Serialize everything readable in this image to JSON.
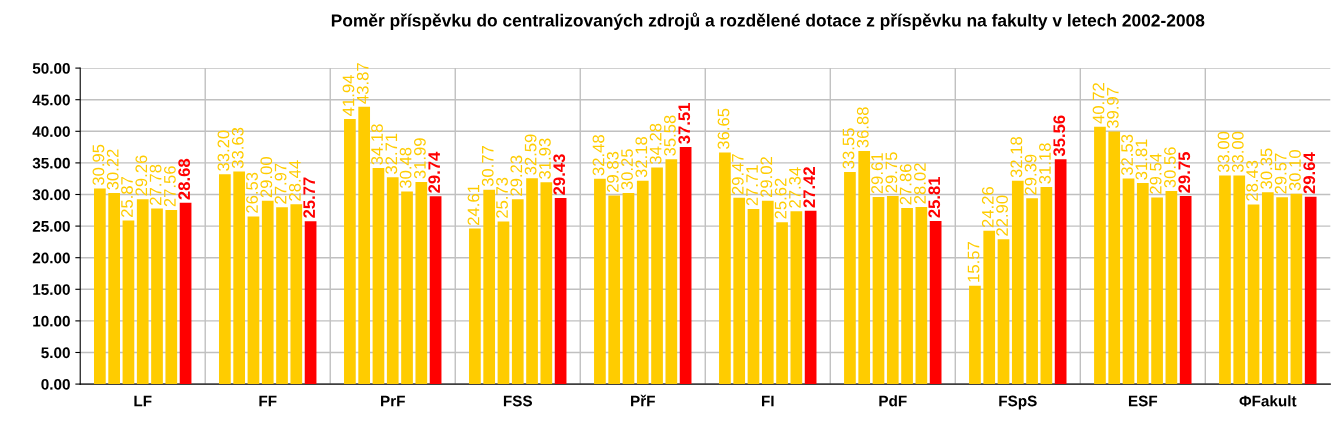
{
  "chart_data": {
    "type": "bar",
    "title": "Poměr příspěvku do centralizovaných zdrojů a rozdělené dotace z příspěvku na fakulty v letech 2002-2008",
    "categories": [
      "LF",
      "FF",
      "PrF",
      "FSS",
      "PřF",
      "FI",
      "PdF",
      "FSpS",
      "ESF",
      "ΦFakult"
    ],
    "series": [
      {
        "color": "#ffcc00",
        "values": [
          30.95,
          33.2,
          41.94,
          24.61,
          32.48,
          36.65,
          33.55,
          15.57,
          40.72,
          33.0
        ],
        "value_labels": [
          "30.95",
          "33.20",
          "41.94",
          "24.61",
          "32.48",
          "36.65",
          "33.55",
          "15.57",
          "40.72",
          "33.00"
        ]
      },
      {
        "color": "#ffcc00",
        "values": [
          30.22,
          33.63,
          43.87,
          30.77,
          29.83,
          29.47,
          36.88,
          24.26,
          39.97,
          33.0
        ],
        "value_labels": [
          "30.22",
          "33.63",
          "43.87",
          "30.77",
          "29.83",
          "29.47",
          "36.88",
          "24.26",
          "39.97",
          "33.00"
        ]
      },
      {
        "color": "#ffcc00",
        "values": [
          25.87,
          26.53,
          34.18,
          25.73,
          30.25,
          27.71,
          29.61,
          22.9,
          32.53,
          28.43
        ],
        "value_labels": [
          "25.87",
          "26.53",
          "34.18",
          "25.73",
          "30.25",
          "27.71",
          "29.61",
          "22.90",
          "32.53",
          "28.43"
        ]
      },
      {
        "color": "#ffcc00",
        "values": [
          29.26,
          29.0,
          32.71,
          29.23,
          32.18,
          29.02,
          29.75,
          32.18,
          31.81,
          30.35
        ],
        "value_labels": [
          "29.26",
          "29.00",
          "32.71",
          "29.23",
          "32.18",
          "29.02",
          "29.75",
          "32.18",
          "31.81",
          "30.35"
        ]
      },
      {
        "color": "#ffcc00",
        "values": [
          27.78,
          27.97,
          30.48,
          32.59,
          34.28,
          25.62,
          27.86,
          29.39,
          29.54,
          29.57
        ],
        "value_labels": [
          "27.78",
          "27.97",
          "30.48",
          "32.59",
          "34.28",
          "25.62",
          "27.86",
          "29.39",
          "29.54",
          "29.57"
        ]
      },
      {
        "color": "#ffcc00",
        "values": [
          27.56,
          28.44,
          31.99,
          31.93,
          35.58,
          27.34,
          28.02,
          31.18,
          30.56,
          30.1
        ],
        "value_labels": [
          "27.56",
          "28.44",
          "31.99",
          "31.93",
          "35.58",
          "27.34",
          "28.02",
          "31.18",
          "30.56",
          "30.10"
        ]
      },
      {
        "color": "#ff0000",
        "values": [
          28.68,
          25.77,
          29.74,
          29.43,
          37.51,
          27.42,
          25.81,
          35.56,
          29.75,
          29.64
        ],
        "value_labels": [
          "28.68",
          "25.77",
          "29.74",
          "29.43",
          "37.51",
          "27.42",
          "25.81",
          "35.56",
          "29.75",
          "29.64"
        ]
      }
    ],
    "ylim": [
      0,
      50
    ],
    "yticks": [
      {
        "value": 0,
        "label": "0.00"
      },
      {
        "value": 5,
        "label": "5.00"
      },
      {
        "value": 10,
        "label": "10.00"
      },
      {
        "value": 15,
        "label": "15.00"
      },
      {
        "value": 20,
        "label": "20.00"
      },
      {
        "value": 25,
        "label": "25.00"
      },
      {
        "value": 30,
        "label": "30.00"
      },
      {
        "value": 35,
        "label": "35.00"
      },
      {
        "value": 40,
        "label": "40.00"
      },
      {
        "value": 45,
        "label": "45.00"
      },
      {
        "value": 50,
        "label": "50.00"
      }
    ],
    "grid": true
  }
}
